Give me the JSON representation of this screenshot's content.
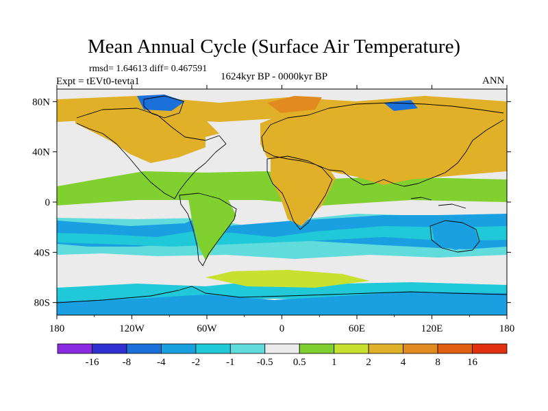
{
  "chart_data": {
    "type": "heatmap",
    "title": "Mean Annual Cycle (Surface Air Temperature)",
    "stats": "rmsd= 1.64613 diff= 0.467591",
    "experiment": "Expt = tEVt0-tevta1",
    "period": "1624kyr BP - 0000kyr BP",
    "season": "ANN",
    "x_ticks": [
      "180",
      "120W",
      "60W",
      "0",
      "60E",
      "120E",
      "180"
    ],
    "y_ticks": [
      "80N",
      "40N",
      "0",
      "40S",
      "80S"
    ],
    "x_range": [
      -180,
      180
    ],
    "y_range": [
      -90,
      90
    ],
    "colorbar": {
      "labels": [
        "-16",
        "-8",
        "-4",
        "-2",
        "-1",
        "-0.5",
        "0.5",
        "1",
        "2",
        "4",
        "8",
        "16"
      ],
      "colors": [
        "#8a2be2",
        "#3030d0",
        "#1a6fd8",
        "#1aa0e0",
        "#20c8d8",
        "#60dcdc",
        "#ebebeb",
        "#80d030",
        "#c8e030",
        "#e0b028",
        "#e08a20",
        "#e06010",
        "#e03010"
      ]
    }
  }
}
